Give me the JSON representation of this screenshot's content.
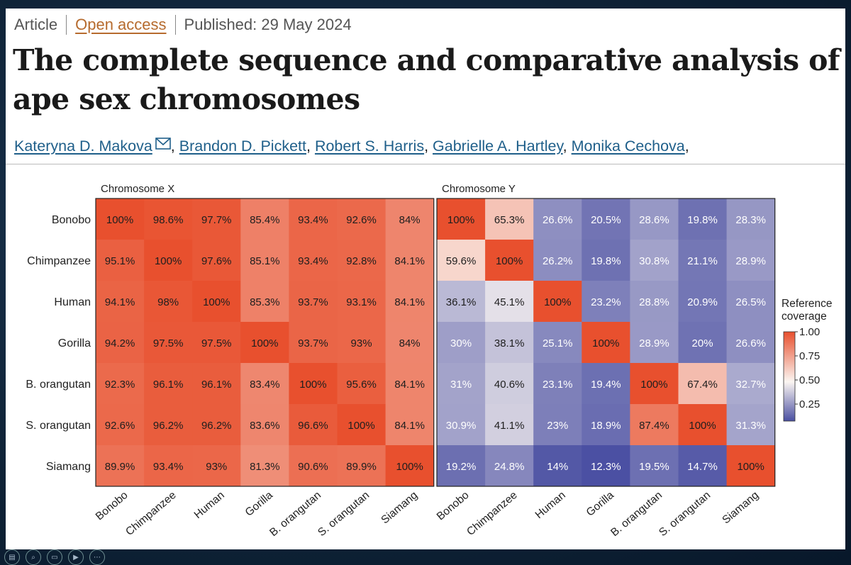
{
  "article": {
    "type": "Article",
    "access": "Open access",
    "published": "Published: 29 May 2024",
    "title": "The complete sequence and comparative analysis of ape sex chromosomes",
    "authors": [
      "Kateryna D. Makova",
      "Brandon D. Pickett",
      "Robert S. Harris",
      "Gabrielle A. Hartley",
      "Monika Cechova"
    ],
    "author_sep": ", ",
    "trailing": ","
  },
  "toolbar": {
    "icons": [
      "pages-icon",
      "zoom-icon",
      "screen-icon",
      "camera-icon",
      "more-icon"
    ]
  },
  "chart_data": {
    "type": "heatmap",
    "rows": [
      "Bonobo",
      "Chimpanzee",
      "Human",
      "Gorilla",
      "B. orangutan",
      "S. orangutan",
      "Siamang"
    ],
    "cols": [
      "Bonobo",
      "Chimpanzee",
      "Human",
      "Gorilla",
      "B. orangutan",
      "S. orangutan",
      "Siamang"
    ],
    "panels": [
      {
        "title": "Chromosome X",
        "values": [
          [
            "100%",
            "98.6%",
            "97.7%",
            "85.4%",
            "93.4%",
            "92.6%",
            "84%"
          ],
          [
            "95.1%",
            "100%",
            "97.6%",
            "85.1%",
            "93.4%",
            "92.8%",
            "84.1%"
          ],
          [
            "94.1%",
            "98%",
            "100%",
            "85.3%",
            "93.7%",
            "93.1%",
            "84.1%"
          ],
          [
            "94.2%",
            "97.5%",
            "97.5%",
            "100%",
            "93.7%",
            "93%",
            "84%"
          ],
          [
            "92.3%",
            "96.1%",
            "96.1%",
            "83.4%",
            "100%",
            "95.6%",
            "84.1%"
          ],
          [
            "92.6%",
            "96.2%",
            "96.2%",
            "83.6%",
            "96.6%",
            "100%",
            "84.1%"
          ],
          [
            "89.9%",
            "93.4%",
            "93%",
            "81.3%",
            "90.6%",
            "89.9%",
            "100%"
          ]
        ]
      },
      {
        "title": "Chromosome Y",
        "values": [
          [
            "100%",
            "65.3%",
            "26.6%",
            "20.5%",
            "28.6%",
            "19.8%",
            "28.3%"
          ],
          [
            "59.6%",
            "100%",
            "26.2%",
            "19.8%",
            "30.8%",
            "21.1%",
            "28.9%"
          ],
          [
            "36.1%",
            "45.1%",
            "100%",
            "23.2%",
            "28.8%",
            "20.9%",
            "26.5%"
          ],
          [
            "30%",
            "38.1%",
            "25.1%",
            "100%",
            "28.9%",
            "20%",
            "26.6%"
          ],
          [
            "31%",
            "40.6%",
            "23.1%",
            "19.4%",
            "100%",
            "67.4%",
            "32.7%"
          ],
          [
            "30.9%",
            "41.1%",
            "23%",
            "18.9%",
            "87.4%",
            "100%",
            "31.3%"
          ],
          [
            "19.2%",
            "24.8%",
            "14%",
            "12.3%",
            "19.5%",
            "14.7%",
            "100%"
          ]
        ]
      }
    ],
    "legend": {
      "title_lines": [
        "Reference",
        "coverage"
      ],
      "ticks": [
        "0.25",
        "0.50",
        "0.75",
        "1.00"
      ],
      "tick_values": [
        0.25,
        0.5,
        0.75,
        1.0
      ],
      "range": [
        0.12,
        1.0
      ]
    },
    "color_scale": {
      "low": "#4a4fa2",
      "mid": "#fbf6f2",
      "high": "#e8502e"
    }
  }
}
